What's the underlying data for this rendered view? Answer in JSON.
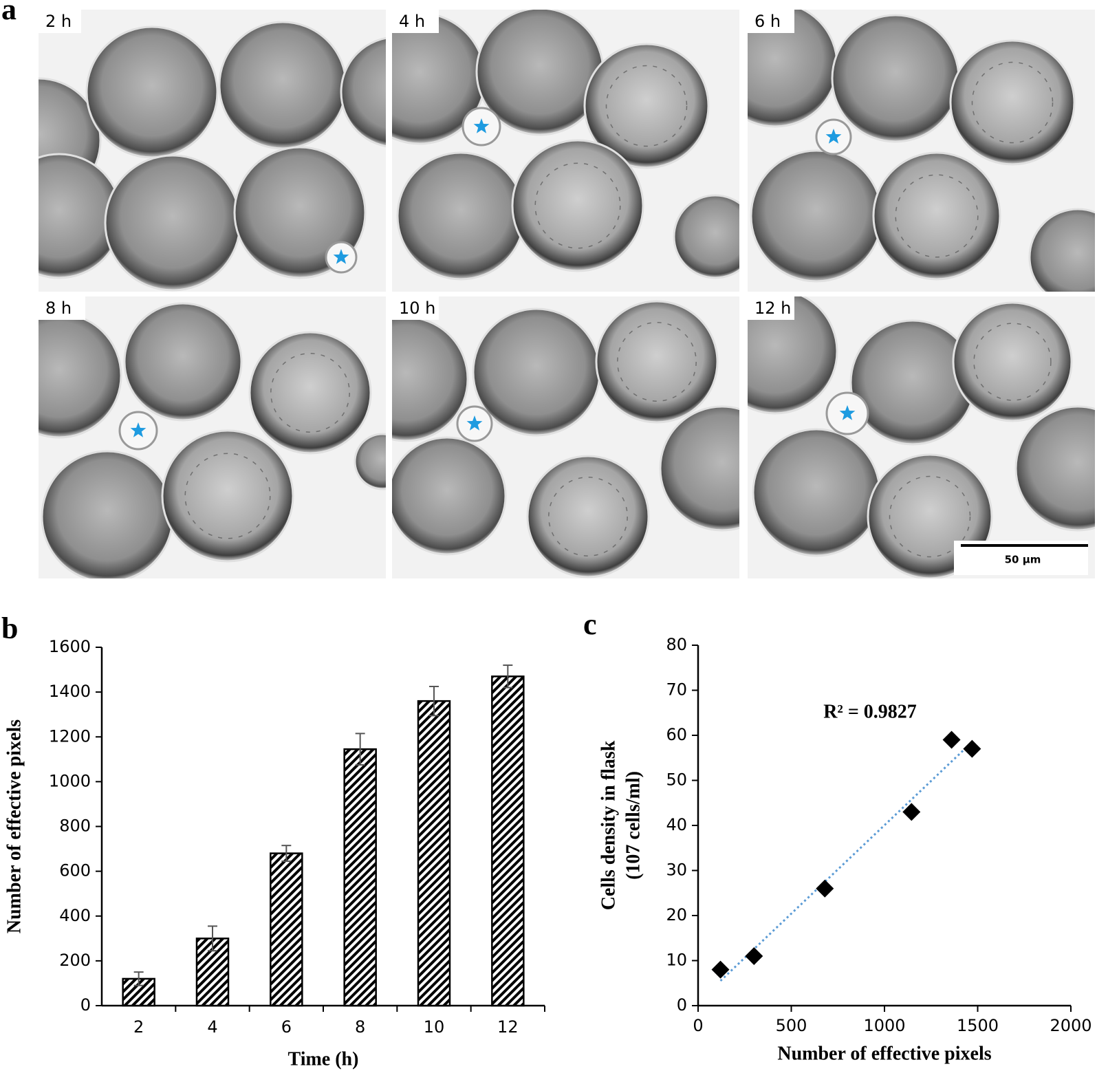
{
  "figure_labels": [
    "a",
    "b",
    "c"
  ],
  "panel_a": {
    "time_labels": [
      "2 h",
      "4 h",
      "6 h",
      "8 h",
      "10 h",
      "12 h"
    ],
    "scale_bar": "50 µm"
  },
  "chart_data": [
    {
      "type": "bar",
      "categories": [
        "2",
        "4",
        "6",
        "8",
        "10",
        "12"
      ],
      "values": [
        120,
        300,
        680,
        1145,
        1360,
        1470
      ],
      "errors": [
        30,
        55,
        35,
        70,
        65,
        50
      ],
      "xlabel": "Time (h)",
      "ylabel": "Number of effective pixels",
      "ylim": [
        0,
        1600
      ],
      "yticks": [
        0,
        200,
        400,
        600,
        800,
        1000,
        1200,
        1400,
        1600
      ],
      "color": "#000000"
    },
    {
      "type": "scatter",
      "x": [
        120,
        300,
        680,
        1145,
        1360,
        1470
      ],
      "values": [
        8,
        11,
        26,
        43,
        59,
        57
      ],
      "xlabel": "Number of effective pixels",
      "ylabel": [
        "Cells density in flask",
        "(107 cells/ml)"
      ],
      "annotation": "R² = 0.9827",
      "xlim": [
        0,
        2000
      ],
      "xticks": [
        0,
        500,
        1000,
        1500,
        2000
      ],
      "ylim": [
        0,
        80
      ],
      "yticks": [
        0,
        10,
        20,
        30,
        40,
        50,
        60,
        70,
        80
      ],
      "trendline": true,
      "trendline_color": "#5b9bd5",
      "color": "#000000"
    }
  ]
}
